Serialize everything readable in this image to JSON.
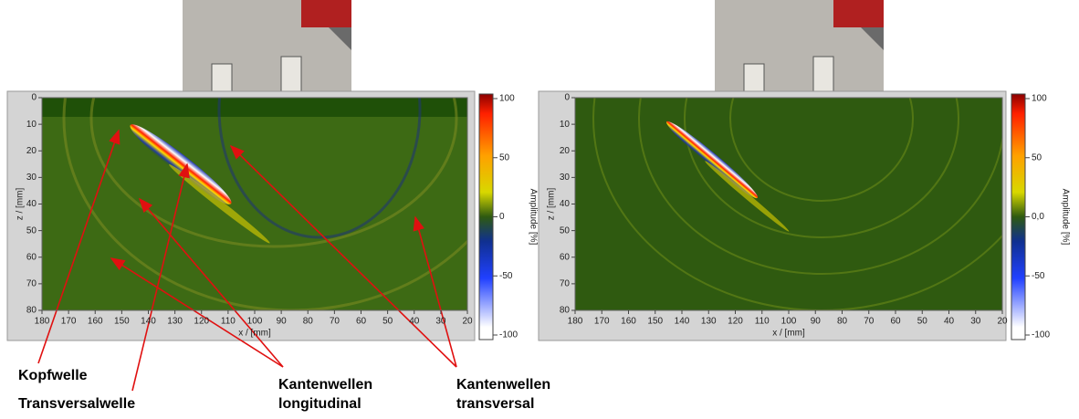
{
  "panels": [
    {
      "x_axis": {
        "label": "x / [mm]",
        "ticks": [
          180,
          170,
          160,
          150,
          140,
          130,
          120,
          110,
          100,
          90,
          80,
          70,
          60,
          50,
          40,
          30,
          20
        ]
      },
      "y_axis": {
        "label": "z / [mm]",
        "ticks": [
          0,
          10,
          20,
          30,
          40,
          50,
          60,
          70,
          80
        ]
      },
      "colorbar": {
        "label": "Amplitude [%]",
        "ticks": [
          "100",
          "50",
          "0",
          "-50",
          "-100"
        ]
      }
    },
    {
      "x_axis": {
        "label": "x / [mm]",
        "ticks": [
          180,
          170,
          160,
          150,
          140,
          130,
          120,
          110,
          100,
          90,
          80,
          70,
          60,
          50,
          40,
          30,
          20
        ]
      },
      "y_axis": {
        "label": "z / [mm]",
        "ticks": [
          0,
          10,
          20,
          30,
          40,
          50,
          60,
          70,
          80
        ]
      },
      "colorbar": {
        "label": "Amplitude [%]",
        "ticks": [
          "100",
          "50",
          "0,0",
          "-50",
          "-100"
        ]
      }
    }
  ],
  "annotations": [
    {
      "lines": [
        "Kopfwelle"
      ]
    },
    {
      "lines": [
        "Transversalwelle"
      ]
    },
    {
      "lines": [
        "Kantenwellen",
        "longitudinal"
      ]
    },
    {
      "lines": [
        "Kantenwellen",
        "transversal"
      ]
    }
  ]
}
